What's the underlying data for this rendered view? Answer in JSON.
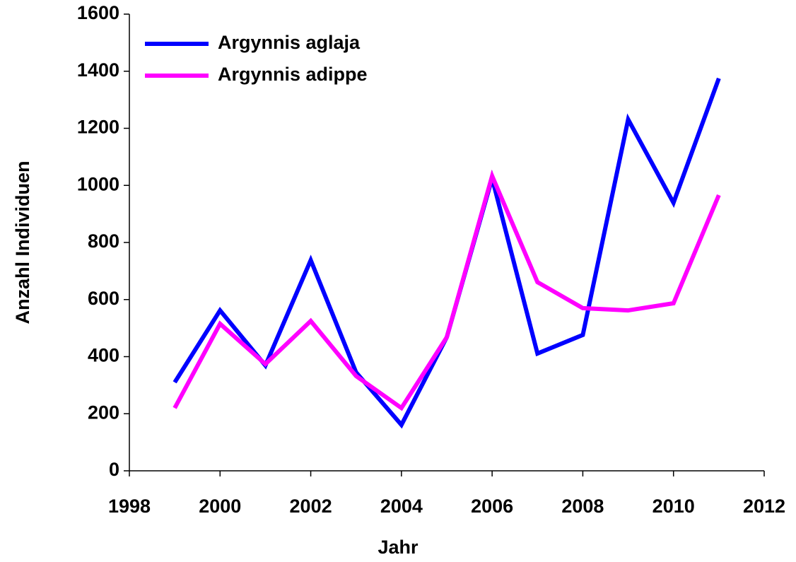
{
  "chart_data": {
    "type": "line",
    "xlabel": "Jahr",
    "ylabel": "Anzahl Individuen",
    "x": [
      1999,
      2000,
      2001,
      2002,
      2003,
      2004,
      2005,
      2006,
      2007,
      2008,
      2009,
      2010,
      2011
    ],
    "series": [
      {
        "name": "Argynnis aglaja",
        "color": "#0000ff",
        "values": [
          310,
          562,
          369,
          738,
          345,
          161,
          468,
          1025,
          411,
          476,
          1231,
          939,
          1375
        ]
      },
      {
        "name": "Argynnis adippe",
        "color": "#ff00ff",
        "values": [
          220,
          515,
          374,
          525,
          332,
          220,
          468,
          1033,
          661,
          570,
          562,
          587,
          966
        ]
      }
    ],
    "xlim": [
      1998,
      2012
    ],
    "xticks": [
      1998,
      2000,
      2002,
      2004,
      2006,
      2008,
      2010,
      2012
    ],
    "ylim": [
      0,
      1600
    ],
    "yticks": [
      0,
      200,
      400,
      600,
      800,
      1000,
      1200,
      1400,
      1600
    ],
    "grid": false,
    "legend": "upper left"
  }
}
